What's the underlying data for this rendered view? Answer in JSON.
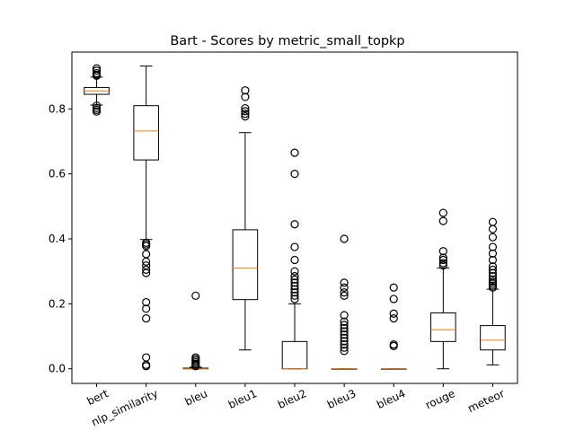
{
  "chart_data": {
    "type": "box",
    "title": "Bart - Scores by metric_small_topkp",
    "xlabel": "",
    "ylabel": "",
    "ylim": [
      -0.045,
      0.975
    ],
    "yticks": [
      0.0,
      0.2,
      0.4,
      0.6,
      0.8
    ],
    "ytick_labels": [
      "0.0",
      "0.2",
      "0.4",
      "0.6",
      "0.8"
    ],
    "grid": false,
    "colors": {
      "box": "#000000",
      "median": "#ff7f0e",
      "flier": "#000000"
    },
    "categories": [
      "bert",
      "nlp_similarity",
      "bleu",
      "bleu1",
      "bleu2",
      "bleu3",
      "bleu4",
      "rouge",
      "meteor"
    ],
    "boxes": [
      {
        "label": "bert",
        "whisker_low": 0.812,
        "q1": 0.845,
        "median": 0.855,
        "q3": 0.866,
        "whisker_high": 0.898,
        "fliers": [
          0.925,
          0.918,
          0.91,
          0.905,
          0.902,
          0.81,
          0.803,
          0.797,
          0.792
        ]
      },
      {
        "label": "nlp_similarity",
        "whisker_low": 0.398,
        "q1": 0.643,
        "median": 0.732,
        "q3": 0.81,
        "whisker_high": 0.932,
        "fliers": [
          0.388,
          0.383,
          0.378,
          0.353,
          0.33,
          0.318,
          0.305,
          0.295,
          0.205,
          0.185,
          0.155,
          0.035,
          0.012,
          0.008
        ]
      },
      {
        "label": "bleu",
        "whisker_low": 0.0,
        "q1": 0.0,
        "median": 0.0,
        "q3": 0.002,
        "whisker_high": 0.005,
        "fliers": [
          0.225,
          0.035,
          0.03,
          0.025,
          0.02,
          0.015,
          0.012,
          0.008
        ]
      },
      {
        "label": "bleu1",
        "whisker_low": 0.058,
        "q1": 0.213,
        "median": 0.31,
        "q3": 0.428,
        "whisker_high": 0.727,
        "fliers": [
          0.857,
          0.837,
          0.802,
          0.793,
          0.785,
          0.777
        ]
      },
      {
        "label": "bleu2",
        "whisker_low": 0.0,
        "q1": 0.0,
        "median": 0.0,
        "q3": 0.084,
        "whisker_high": 0.2,
        "fliers": [
          0.665,
          0.6,
          0.445,
          0.375,
          0.335,
          0.3,
          0.285,
          0.275,
          0.265,
          0.255,
          0.245,
          0.235,
          0.225,
          0.215
        ]
      },
      {
        "label": "bleu3",
        "whisker_low": 0.0,
        "q1": 0.0,
        "median": 0.0,
        "q3": 0.0,
        "whisker_high": 0.0,
        "fliers": [
          0.4,
          0.265,
          0.25,
          0.235,
          0.225,
          0.165,
          0.145,
          0.135,
          0.125,
          0.115,
          0.105,
          0.095,
          0.085,
          0.075,
          0.065,
          0.055
        ]
      },
      {
        "label": "bleu4",
        "whisker_low": 0.0,
        "q1": 0.0,
        "median": 0.0,
        "q3": 0.0,
        "whisker_high": 0.0,
        "fliers": [
          0.25,
          0.215,
          0.17,
          0.155,
          0.075,
          0.07
        ]
      },
      {
        "label": "rouge",
        "whisker_low": 0.0,
        "q1": 0.084,
        "median": 0.12,
        "q3": 0.172,
        "whisker_high": 0.31,
        "fliers": [
          0.48,
          0.455,
          0.362,
          0.342,
          0.335,
          0.325,
          0.318
        ]
      },
      {
        "label": "meteor",
        "whisker_low": 0.012,
        "q1": 0.058,
        "median": 0.088,
        "q3": 0.133,
        "whisker_high": 0.245,
        "fliers": [
          0.452,
          0.43,
          0.405,
          0.375,
          0.355,
          0.335,
          0.315,
          0.305,
          0.295,
          0.285,
          0.275,
          0.268,
          0.262,
          0.256,
          0.25
        ]
      }
    ]
  }
}
